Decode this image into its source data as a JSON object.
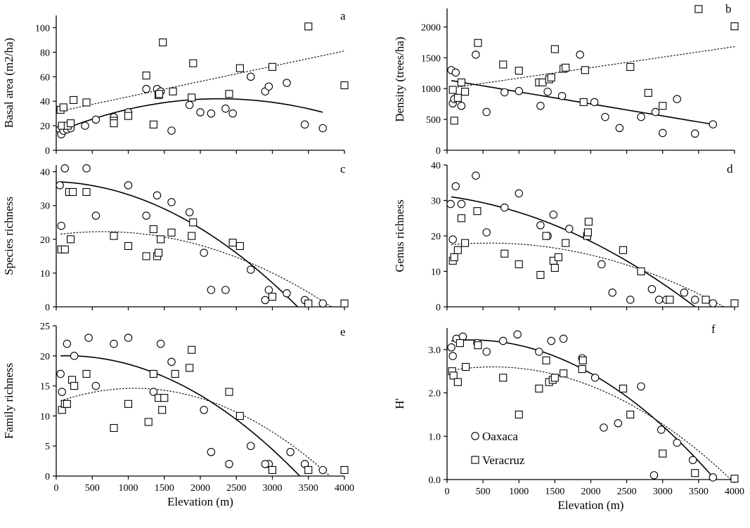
{
  "legend": {
    "oaxaca": "Oaxaca",
    "veracruz": "Veracruz"
  },
  "chart_data": [
    {
      "panel": "a",
      "type": "scatter",
      "ylabel": "Basal area (m2/ha)",
      "xlabel": "",
      "xlim": [
        0,
        4000
      ],
      "ylim": [
        0,
        110
      ],
      "xticks": [
        0,
        500,
        1000,
        1500,
        2000,
        2500,
        3000,
        3500,
        4000
      ],
      "xtick_labels": [],
      "yticks": [
        0,
        20,
        40,
        60,
        80,
        100
      ],
      "ytick_labels": [
        "0",
        "20",
        "40",
        "60",
        "80",
        "100"
      ],
      "series": [
        {
          "name": "Oaxaca",
          "marker": "circle",
          "x": [
            50,
            70,
            100,
            150,
            200,
            400,
            550,
            800,
            1000,
            1250,
            1400,
            1450,
            1600,
            1850,
            2000,
            2150,
            2350,
            2450,
            2700,
            2900,
            2950,
            3200,
            3450,
            3700
          ],
          "y": [
            17,
            13,
            16,
            17,
            18,
            20,
            25,
            27,
            31,
            50,
            50,
            48,
            16,
            37,
            31,
            30,
            34,
            30,
            60,
            48,
            52,
            55,
            21,
            18
          ]
        },
        {
          "name": "Veracruz",
          "marker": "square",
          "x": [
            60,
            80,
            100,
            160,
            200,
            240,
            420,
            800,
            800,
            1000,
            1250,
            1350,
            1420,
            1430,
            1480,
            1620,
            1880,
            1900,
            2400,
            2550,
            3000,
            3500,
            4000
          ],
          "y": [
            33,
            20,
            35,
            20,
            22,
            41,
            39,
            24,
            22,
            28,
            61,
            21,
            45,
            46,
            88,
            48,
            43,
            71,
            46,
            67,
            68,
            101,
            53
          ]
        }
      ],
      "fits": [
        {
          "series": "Oaxaca",
          "kind": "quadratic",
          "x_range": [
            60,
            3700
          ],
          "y_at": [
            [
              60,
              16
            ],
            [
              2300,
              42
            ],
            [
              3700,
              31
            ]
          ],
          "style": "solid"
        },
        {
          "series": "Veracruz",
          "kind": "linear",
          "x_range": [
            60,
            4000
          ],
          "y_at": [
            [
              60,
              32
            ],
            [
              4000,
              81
            ]
          ],
          "style": "dotted"
        }
      ]
    },
    {
      "panel": "b",
      "type": "scatter",
      "ylabel": "Density (trees/ha)",
      "xlabel": "",
      "xlim": [
        0,
        4000
      ],
      "ylim": [
        0,
        2300
      ],
      "xticks": [
        0,
        500,
        1000,
        1500,
        2000,
        2500,
        3000,
        3500,
        4000
      ],
      "xtick_labels": [],
      "yticks": [
        0,
        500,
        1000,
        1500,
        2000
      ],
      "ytick_labels": [
        "0",
        "500",
        "1000",
        "1500",
        "2000"
      ],
      "series": [
        {
          "name": "Oaxaca",
          "marker": "circle",
          "x": [
            60,
            80,
            100,
            120,
            200,
            400,
            550,
            800,
            1000,
            1300,
            1400,
            1600,
            1850,
            2050,
            2200,
            2400,
            2700,
            2900,
            3000,
            3200,
            3450,
            3700
          ],
          "y": [
            1300,
            760,
            830,
            1260,
            720,
            1550,
            620,
            940,
            960,
            720,
            950,
            880,
            1550,
            780,
            540,
            360,
            540,
            620,
            280,
            830,
            270,
            420
          ]
        },
        {
          "name": "Veracruz",
          "marker": "square",
          "x": [
            80,
            100,
            150,
            200,
            250,
            430,
            780,
            1000,
            1280,
            1330,
            1420,
            1450,
            1500,
            1620,
            1650,
            1900,
            1920,
            2550,
            2800,
            3000,
            3500,
            4000
          ],
          "y": [
            980,
            480,
            850,
            1100,
            950,
            1740,
            1390,
            1290,
            1100,
            1100,
            1150,
            1180,
            1640,
            1320,
            1340,
            780,
            1300,
            1350,
            930,
            720,
            2290,
            2010
          ]
        }
      ],
      "fits": [
        {
          "series": "Oaxaca",
          "kind": "linear",
          "x_range": [
            60,
            3700
          ],
          "y_at": [
            [
              60,
              1130
            ],
            [
              3700,
              420
            ]
          ],
          "style": "solid"
        },
        {
          "series": "Veracruz",
          "kind": "linear",
          "x_range": [
            60,
            4000
          ],
          "y_at": [
            [
              60,
              1010
            ],
            [
              4000,
              1680
            ]
          ],
          "style": "dotted"
        }
      ]
    },
    {
      "panel": "c",
      "type": "scatter",
      "ylabel": "Species richness",
      "xlabel": "",
      "xlim": [
        0,
        4000
      ],
      "ylim": [
        0,
        42
      ],
      "xticks": [
        0,
        500,
        1000,
        1500,
        2000,
        2500,
        3000,
        3500,
        4000
      ],
      "xtick_labels": [],
      "yticks": [
        0,
        10,
        20,
        30,
        40
      ],
      "ytick_labels": [
        "0",
        "10",
        "20",
        "30",
        "40"
      ],
      "series": [
        {
          "name": "Oaxaca",
          "marker": "circle",
          "x": [
            50,
            70,
            120,
            420,
            550,
            1000,
            1250,
            1400,
            1600,
            1850,
            2050,
            2150,
            2350,
            2700,
            2900,
            2950,
            3200,
            3450,
            3700
          ],
          "y": [
            36,
            24,
            41,
            41,
            27,
            36,
            27,
            33,
            31,
            28,
            16,
            5,
            5,
            11,
            2,
            5,
            4,
            2,
            1
          ]
        },
        {
          "name": "Veracruz",
          "marker": "square",
          "x": [
            70,
            120,
            180,
            200,
            230,
            420,
            800,
            1000,
            1250,
            1350,
            1400,
            1420,
            1450,
            1600,
            1900,
            1880,
            2450,
            2550,
            3000,
            3500,
            4000
          ],
          "y": [
            17,
            17,
            34,
            20,
            34,
            34,
            21,
            18,
            15,
            23,
            15,
            16,
            20,
            22,
            25,
            21,
            19,
            18,
            3,
            1,
            1
          ]
        }
      ],
      "fits": [
        {
          "series": "Oaxaca",
          "kind": "quadratic",
          "x_range": [
            60,
            3350
          ],
          "y_at": [
            [
              60,
              37
            ],
            [
              1500,
              29
            ],
            [
              3350,
              0
            ]
          ],
          "style": "solid"
        },
        {
          "series": "Veracruz",
          "kind": "quadratic",
          "x_range": [
            60,
            3820
          ],
          "y_at": [
            [
              60,
              21.5
            ],
            [
              1000,
              22
            ],
            [
              3820,
              0
            ]
          ],
          "style": "dotted"
        }
      ]
    },
    {
      "panel": "d",
      "type": "scatter",
      "ylabel": "Genus richness",
      "xlabel": "",
      "xlim": [
        0,
        4000
      ],
      "ylim": [
        0,
        40
      ],
      "xticks": [
        0,
        500,
        1000,
        1500,
        2000,
        2500,
        3000,
        3500,
        4000
      ],
      "xtick_labels": [],
      "yticks": [
        0,
        10,
        20,
        30,
        40
      ],
      "ytick_labels": [
        "0",
        "10",
        "20",
        "30",
        "40"
      ],
      "series": [
        {
          "name": "Oaxaca",
          "marker": "circle",
          "x": [
            50,
            80,
            120,
            200,
            400,
            550,
            800,
            1000,
            1300,
            1400,
            1480,
            1700,
            1950,
            2150,
            2300,
            2550,
            2850,
            2950,
            3050,
            3300,
            3450,
            3700
          ],
          "y": [
            29,
            19,
            34,
            29,
            37,
            21,
            28,
            32,
            23,
            20,
            26,
            22,
            20,
            12,
            4,
            2,
            5,
            2,
            2,
            4,
            2,
            1
          ]
        },
        {
          "name": "Veracruz",
          "marker": "square",
          "x": [
            80,
            100,
            150,
            200,
            250,
            420,
            800,
            1000,
            1300,
            1380,
            1480,
            1500,
            1550,
            1650,
            1950,
            1960,
            1970,
            2450,
            2700,
            3100,
            3600,
            4000
          ],
          "y": [
            13,
            14,
            16,
            25,
            18,
            27,
            15,
            12,
            9,
            20,
            13,
            11,
            14,
            18,
            20,
            21,
            24,
            16,
            10,
            2,
            2,
            1
          ]
        }
      ],
      "fits": [
        {
          "series": "Oaxaca",
          "kind": "quadratic",
          "x_range": [
            60,
            3450
          ],
          "y_at": [
            [
              60,
              31
            ],
            [
              1500,
              23
            ],
            [
              3450,
              0
            ]
          ],
          "style": "solid"
        },
        {
          "series": "Veracruz",
          "kind": "quadratic",
          "x_range": [
            60,
            3850
          ],
          "y_at": [
            [
              60,
              17.5
            ],
            [
              1000,
              17.7
            ],
            [
              3850,
              0
            ]
          ],
          "style": "dotted"
        }
      ]
    },
    {
      "panel": "e",
      "type": "scatter",
      "ylabel": "Family richness",
      "xlabel": "Elevation (m)",
      "xlim": [
        0,
        4000
      ],
      "ylim": [
        0,
        25
      ],
      "xticks": [
        0,
        500,
        1000,
        1500,
        2000,
        2500,
        3000,
        3500,
        4000
      ],
      "xtick_labels": [
        "0",
        "500",
        "1000",
        "1500",
        "2000",
        "2500",
        "3000",
        "3500",
        "4000"
      ],
      "yticks": [
        0,
        5,
        10,
        15,
        20,
        25
      ],
      "ytick_labels": [
        "0",
        "5",
        "10",
        "15",
        "20",
        "25"
      ],
      "series": [
        {
          "name": "Oaxaca",
          "marker": "circle",
          "x": [
            60,
            80,
            150,
            250,
            450,
            550,
            800,
            1000,
            1350,
            1450,
            1600,
            2050,
            2150,
            2400,
            2700,
            2950,
            2900,
            3250,
            3450,
            3700
          ],
          "y": [
            17,
            14,
            22,
            20,
            23,
            15,
            22,
            23,
            14,
            22,
            19,
            11,
            4,
            2,
            5,
            2,
            2,
            4,
            2,
            1
          ]
        },
        {
          "name": "Veracruz",
          "marker": "square",
          "x": [
            80,
            120,
            150,
            220,
            250,
            420,
            800,
            1000,
            1280,
            1350,
            1420,
            1470,
            1500,
            1650,
            1850,
            1880,
            2400,
            2550,
            3000,
            3500,
            4000
          ],
          "y": [
            11,
            12,
            12,
            16,
            15,
            17,
            8,
            12,
            9,
            17,
            13,
            11,
            13,
            17,
            18,
            21,
            14,
            10,
            1,
            1,
            1
          ]
        }
      ],
      "fits": [
        {
          "series": "Oaxaca",
          "kind": "quadratic",
          "x_range": [
            60,
            3380
          ],
          "y_at": [
            [
              60,
              20
            ],
            [
              1500,
              16.5
            ],
            [
              3380,
              0
            ]
          ],
          "style": "solid"
        },
        {
          "series": "Veracruz",
          "kind": "quadratic",
          "x_range": [
            60,
            3800
          ],
          "y_at": [
            [
              60,
              12.5
            ],
            [
              1100,
              14.6
            ],
            [
              3800,
              0
            ]
          ],
          "style": "dotted"
        }
      ]
    },
    {
      "panel": "f",
      "type": "scatter",
      "ylabel": "H'",
      "xlabel": "Elevation (m)",
      "xlim": [
        0,
        4000
      ],
      "ylim": [
        0,
        3.5
      ],
      "xticks": [
        0,
        500,
        1000,
        1500,
        2000,
        2500,
        3000,
        3500,
        4000
      ],
      "xtick_labels": [
        "0",
        "500",
        "1000",
        "1500",
        "2000",
        "2500",
        "3000",
        "3500",
        "4000"
      ],
      "yticks": [
        0,
        1,
        2,
        3
      ],
      "ytick_labels": [
        "0.0",
        "1.0",
        "2.0",
        "3.0"
      ],
      "series": [
        {
          "name": "Oaxaca",
          "marker": "circle",
          "x": [
            60,
            80,
            130,
            220,
            420,
            550,
            780,
            980,
            1280,
            1450,
            1620,
            1880,
            2060,
            2180,
            2380,
            2700,
            2880,
            2980,
            3200,
            3420,
            3700
          ],
          "y": [
            3.05,
            2.85,
            3.25,
            3.3,
            3.15,
            2.95,
            3.2,
            3.35,
            2.95,
            3.2,
            3.25,
            2.8,
            2.35,
            1.2,
            1.3,
            2.15,
            0.1,
            1.15,
            0.85,
            0.45,
            0.05
          ]
        },
        {
          "name": "Veracruz",
          "marker": "square",
          "x": [
            70,
            90,
            150,
            180,
            260,
            430,
            780,
            1000,
            1280,
            1380,
            1420,
            1470,
            1500,
            1620,
            1880,
            1890,
            2450,
            2550,
            3000,
            3450,
            4000
          ],
          "y": [
            2.5,
            2.4,
            2.25,
            3.15,
            2.6,
            3.1,
            2.35,
            1.5,
            2.1,
            2.75,
            2.25,
            2.3,
            2.35,
            2.45,
            2.55,
            2.75,
            2.1,
            1.5,
            0.6,
            0.15,
            0.02
          ]
        }
      ],
      "fits": [
        {
          "series": "Oaxaca",
          "kind": "quadratic",
          "x_range": [
            60,
            3730
          ],
          "y_at": [
            [
              60,
              3.2
            ],
            [
              1000,
              3.1
            ],
            [
              3730,
              0
            ]
          ],
          "style": "solid"
        },
        {
          "series": "Veracruz",
          "kind": "quadratic",
          "x_range": [
            60,
            3950
          ],
          "y_at": [
            [
              60,
              2.52
            ],
            [
              600,
              2.6
            ],
            [
              3950,
              0
            ]
          ],
          "style": "dotted"
        }
      ]
    }
  ]
}
